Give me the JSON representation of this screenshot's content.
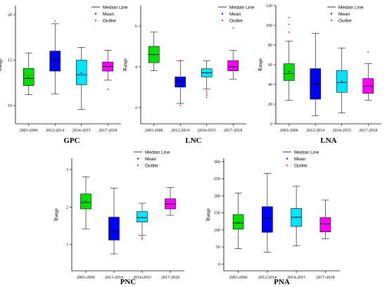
{
  "chart_data": [
    {
      "type": "box",
      "title": "GPC",
      "ylabel": "Range",
      "categories": [
        "2003-2006",
        "2012-2014",
        "2014-2015",
        "2017-2018"
      ],
      "colors": [
        "#00e000",
        "#0000ff",
        "#00e5ff",
        "#ff00ff"
      ],
      "ylim": [
        8,
        21
      ],
      "yticks": [
        10,
        15,
        20
      ],
      "boxes": [
        {
          "whislo": 11.2,
          "q1": 12.2,
          "med": 13.0,
          "q3": 14.1,
          "whishi": 15.8,
          "mean": 13.1,
          "fliers": []
        },
        {
          "whislo": 11.3,
          "q1": 13.8,
          "med": 15.0,
          "q3": 16.0,
          "whishi": 19.0,
          "mean": 15.1,
          "fliers": [
            19.3
          ]
        },
        {
          "whislo": 9.6,
          "q1": 12.3,
          "med": 13.4,
          "q3": 15.0,
          "whishi": 16.4,
          "mean": 13.6,
          "fliers": []
        },
        {
          "whislo": 12.8,
          "q1": 13.8,
          "med": 14.3,
          "q3": 14.8,
          "whishi": 16.1,
          "mean": 14.3,
          "fliers": [
            11.8
          ]
        }
      ],
      "legend": [
        "Median Line",
        "Mean",
        "Outlier"
      ]
    },
    {
      "type": "box",
      "title": "LNC",
      "ylabel": "Range",
      "categories": [
        "2012-2014",
        "2014-2015",
        "2017-2018"
      ],
      "group_labels_all": [
        "2003-2006",
        "2012-2014",
        "2014-2015",
        "2017-2018"
      ],
      "colors": [
        "#00e000",
        "#0000ff",
        "#00e5ff",
        "#ff00ff"
      ],
      "ylim": [
        1.2,
        7.0
      ],
      "yticks": [
        2,
        4,
        6
      ],
      "boxes": [
        {
          "whislo": 3.8,
          "q1": 4.2,
          "med": 4.6,
          "q3": 5.0,
          "whishi": 5.7,
          "mean": 4.6,
          "fliers": []
        },
        {
          "whislo": 2.2,
          "q1": 3.0,
          "med": 3.3,
          "q3": 3.5,
          "whishi": 4.3,
          "mean": 3.3,
          "fliers": [
            2.1,
            4.3
          ]
        },
        {
          "whislo": 2.9,
          "q1": 3.5,
          "med": 3.7,
          "q3": 3.9,
          "whishi": 4.3,
          "mean": 3.7,
          "fliers": [
            2.5,
            2.6,
            2.7,
            2.8
          ]
        },
        {
          "whislo": 3.4,
          "q1": 3.8,
          "med": 4.0,
          "q3": 4.3,
          "whishi": 4.8,
          "mean": 4.0,
          "fliers": [
            5.9
          ]
        }
      ],
      "legend": [
        "Median Line",
        "Mean",
        "Outlier"
      ]
    },
    {
      "type": "box",
      "title": "LNA",
      "ylabel": "Range",
      "categories": [
        "2003-2006",
        "2012-2014",
        "2014-2015",
        "2017-2018"
      ],
      "colors": [
        "#00e000",
        "#0000ff",
        "#00e5ff",
        "#ff00ff"
      ],
      "ylim": [
        0,
        120
      ],
      "yticks": [
        0,
        20,
        40,
        60,
        80,
        100,
        120
      ],
      "boxes": [
        {
          "whislo": 24,
          "q1": 44,
          "med": 51,
          "q3": 61,
          "whishi": 84,
          "mean": 53,
          "fliers": [
            93,
            101,
            108
          ]
        },
        {
          "whislo": 8,
          "q1": 25,
          "med": 40,
          "q3": 56,
          "whishi": 92,
          "mean": 41,
          "fliers": []
        },
        {
          "whislo": 11,
          "q1": 32,
          "med": 42,
          "q3": 54,
          "whishi": 77,
          "mean": 43,
          "fliers": []
        },
        {
          "whislo": 24,
          "q1": 31,
          "med": 38,
          "q3": 46,
          "whishi": 61,
          "mean": 39,
          "fliers": [
            73
          ]
        }
      ],
      "legend": [
        "Median Line",
        "Mean",
        "Outlier"
      ]
    },
    {
      "type": "box",
      "title": "PNC",
      "ylabel": "Range",
      "categories": [
        "2003-2006",
        "2013-2014",
        "2014-2015",
        "2017-2018"
      ],
      "colors": [
        "#00e000",
        "#0000ff",
        "#00e5ff",
        "#ff00ff"
      ],
      "ylim": [
        0.3,
        3.3
      ],
      "yticks": [
        1,
        2,
        3
      ],
      "boxes": [
        {
          "whislo": 1.42,
          "q1": 1.95,
          "med": 2.12,
          "q3": 2.35,
          "whishi": 2.8,
          "mean": 2.15,
          "fliers": []
        },
        {
          "whislo": 0.75,
          "q1": 1.12,
          "med": 1.35,
          "q3": 1.73,
          "whishi": 2.5,
          "mean": 1.4,
          "fliers": []
        },
        {
          "whislo": 1.25,
          "q1": 1.6,
          "med": 1.72,
          "q3": 1.88,
          "whishi": 2.1,
          "mean": 1.72,
          "fliers": [
            1.15,
            1.2
          ]
        },
        {
          "whislo": 1.78,
          "q1": 1.95,
          "med": 2.08,
          "q3": 2.22,
          "whishi": 2.52,
          "mean": 2.08,
          "fliers": []
        }
      ],
      "legend": [
        "Median Line",
        "Mean",
        "Outlier"
      ]
    },
    {
      "type": "box",
      "title": "PNA",
      "ylabel": "Range",
      "categories": [
        "2003-2006",
        "2012-2014",
        "2014-2015",
        "2017-2018"
      ],
      "colors": [
        "#00e000",
        "#0000ff",
        "#00e5ff",
        "#ff00ff"
      ],
      "ylim": [
        -20,
        310
      ],
      "yticks": [
        0,
        50,
        100,
        150,
        200,
        250,
        300
      ],
      "boxes": [
        {
          "whislo": 45,
          "q1": 102,
          "med": 120,
          "q3": 145,
          "whishi": 208,
          "mean": 122,
          "fliers": []
        },
        {
          "whislo": 35,
          "q1": 93,
          "med": 135,
          "q3": 168,
          "whishi": 266,
          "mean": 133,
          "fliers": []
        },
        {
          "whislo": 53,
          "q1": 110,
          "med": 137,
          "q3": 163,
          "whishi": 228,
          "mean": 137,
          "fliers": []
        },
        {
          "whislo": 74,
          "q1": 94,
          "med": 118,
          "q3": 136,
          "whishi": 188,
          "mean": 116,
          "fliers": []
        }
      ],
      "legend": [
        "Median Line",
        "Mean",
        "Outlier"
      ]
    }
  ]
}
